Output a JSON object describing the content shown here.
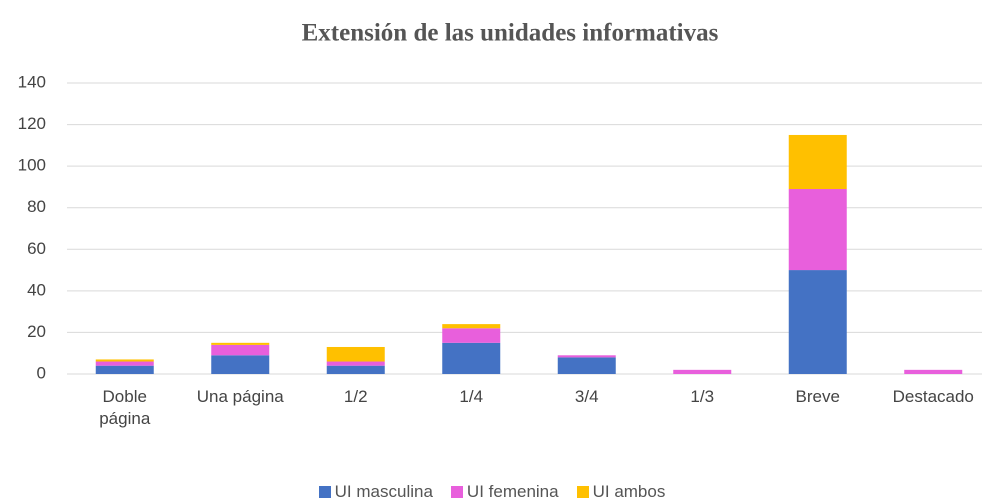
{
  "chart_data": {
    "type": "stacked_bar",
    "title": "Extensión de las unidades informativas",
    "categories": [
      "Doble página",
      "Una página",
      "1/2",
      "1/4",
      "3/4",
      "1/3",
      "Breve",
      "Destacado"
    ],
    "series": [
      {
        "name": "UI masculina",
        "color": "#4472c4",
        "values": [
          4,
          9,
          4,
          15,
          8,
          0,
          50,
          0
        ]
      },
      {
        "name": "UI femenina",
        "color": "#e85fdc",
        "values": [
          2,
          5,
          2,
          7,
          1,
          2,
          39,
          2
        ]
      },
      {
        "name": "UI ambos",
        "color": "#ffc000",
        "values": [
          1,
          1,
          7,
          2,
          0,
          0,
          26,
          0
        ]
      }
    ],
    "ylim": [
      0,
      140
    ],
    "yticks": [
      0,
      20,
      40,
      60,
      80,
      100,
      120,
      140
    ],
    "grid": true,
    "legend": "bottom"
  }
}
